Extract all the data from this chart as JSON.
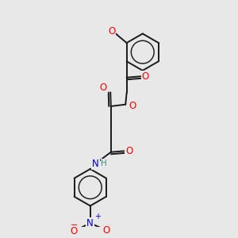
{
  "bg_color": "#e8e8e8",
  "bond_color": "#1a1a1a",
  "bond_width": 1.4,
  "atom_colors": {
    "O": "#ff0000",
    "N": "#0000cc",
    "H": "#2f8f8f",
    "C": "#1a1a1a"
  },
  "fs": 8.5
}
